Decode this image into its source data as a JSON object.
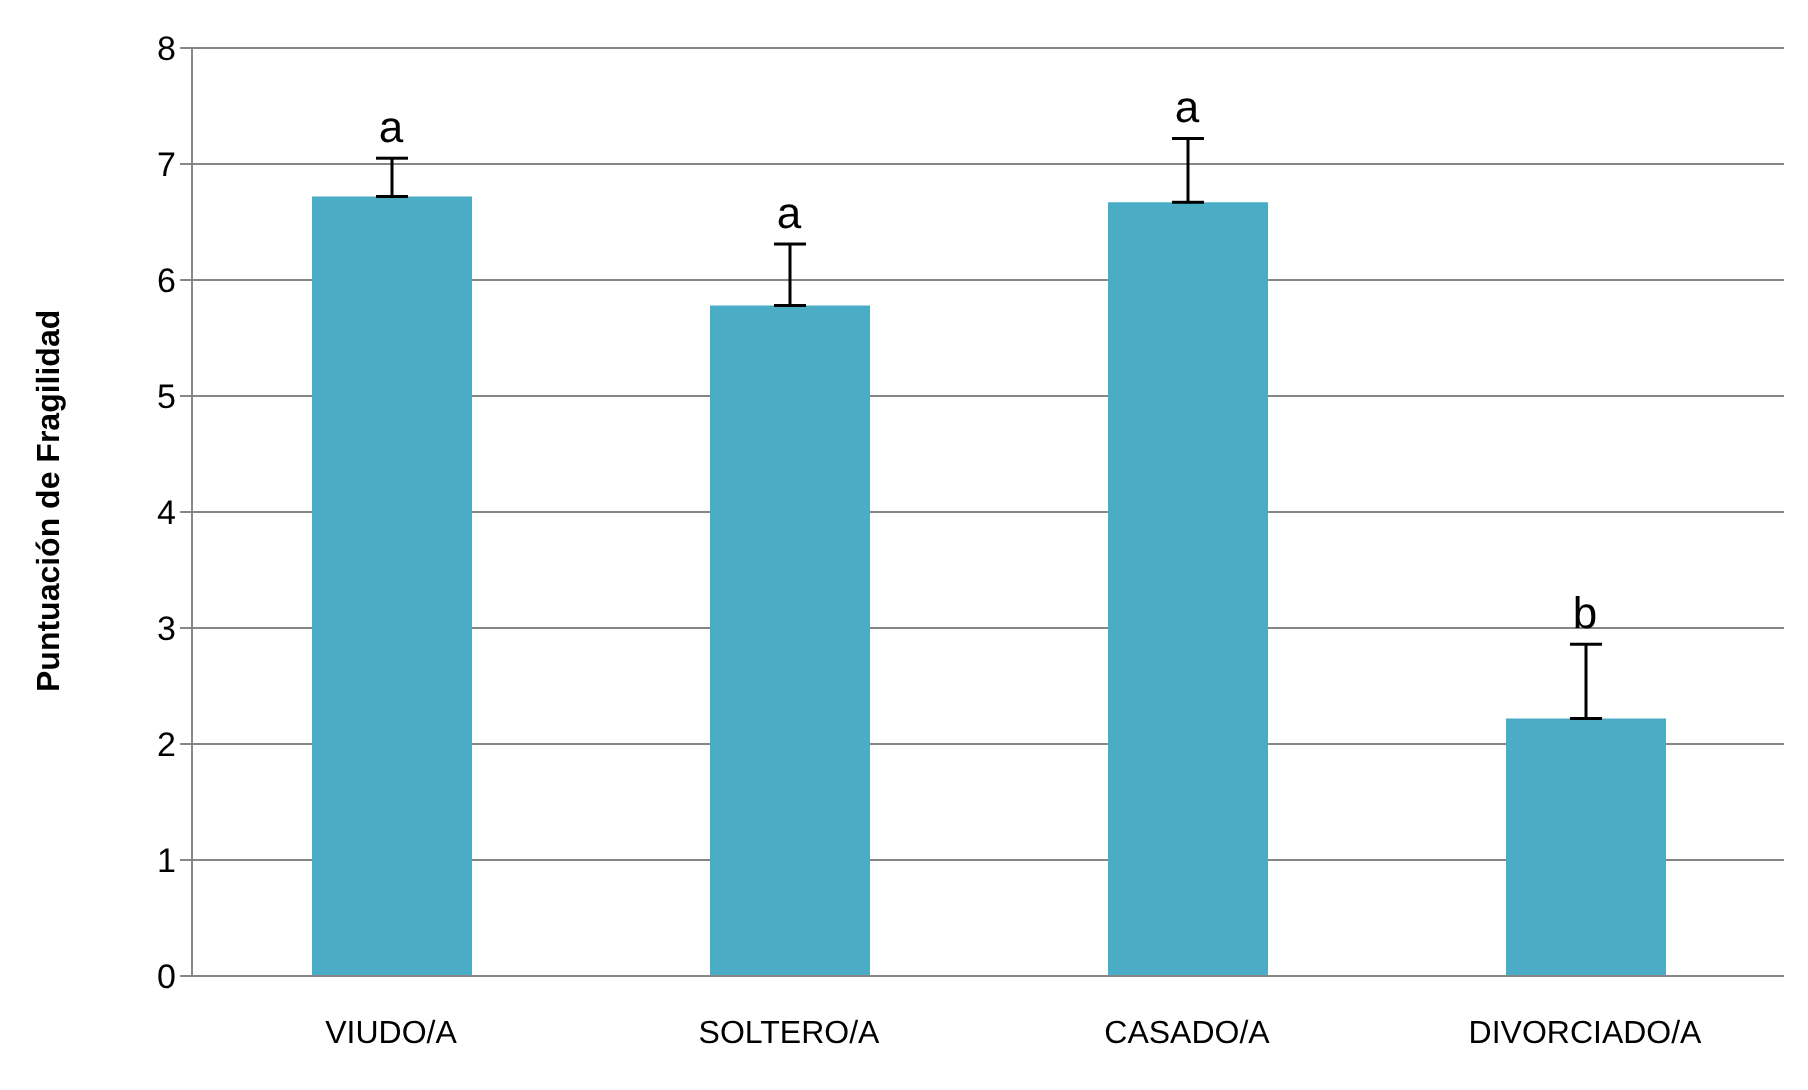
{
  "chart_data": {
    "type": "bar",
    "ylabel": "Puntuación de Fragilidad",
    "categories": [
      "VIUDO/A",
      "SOLTERO/A",
      "CASADO/A",
      "DIVORCIADO/A"
    ],
    "values": [
      6.72,
      5.78,
      6.67,
      2.22
    ],
    "errors": [
      [
        6.72,
        7.05
      ],
      [
        5.78,
        6.31
      ],
      [
        6.67,
        7.22
      ],
      [
        2.22,
        2.86
      ]
    ],
    "color": "#4bacc6",
    "ylim": [
      0,
      8
    ],
    "yticks": [
      0,
      1,
      2,
      3,
      4,
      5,
      6,
      7,
      8
    ],
    "grid": "y",
    "legend": false,
    "annotations": [
      {
        "text": "a",
        "x": "VIUDO/A",
        "y": 7.05
      },
      {
        "text": "a",
        "x": "SOLTERO/A",
        "y": 6.31
      },
      {
        "text": "a",
        "x": "CASADO/A",
        "y": 7.22
      },
      {
        "text": "b",
        "x": "DIVORCIADO/A",
        "y": 2.86
      }
    ]
  }
}
